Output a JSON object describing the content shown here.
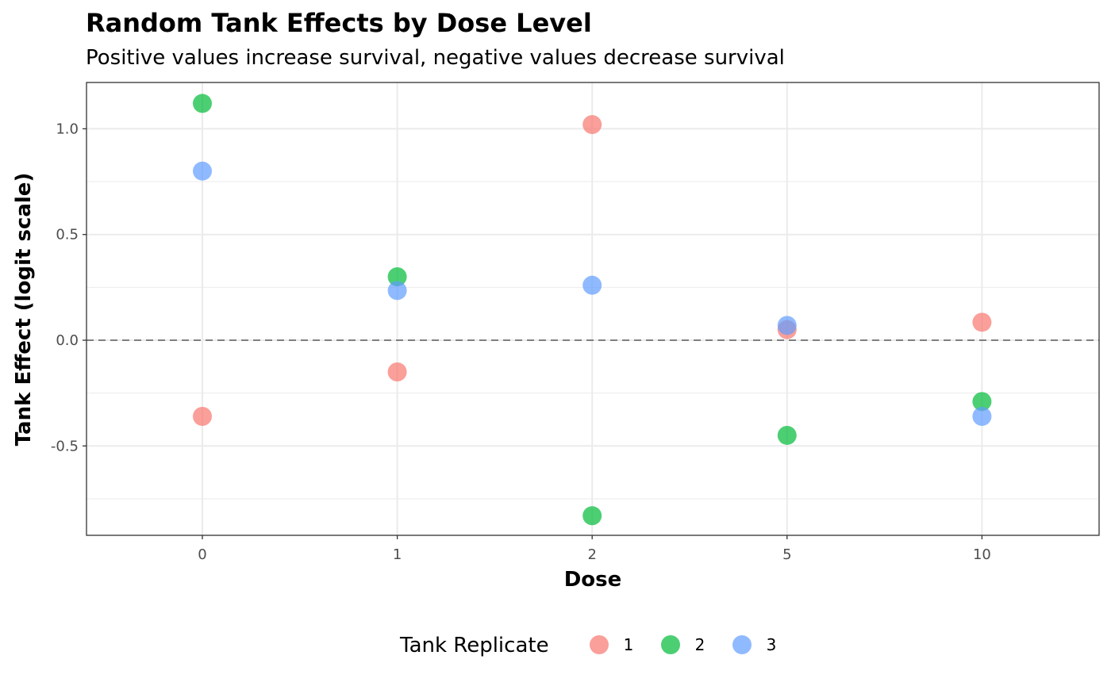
{
  "chart_data": {
    "type": "scatter",
    "title": "Random Tank Effects by Dose Level",
    "subtitle": "Positive values increase survival, negative values decrease survival",
    "xlabel": "Dose",
    "ylabel": "Tank Effect (logit scale)",
    "categories": [
      "0",
      "1",
      "2",
      "5",
      "10"
    ],
    "x_axis_kind": "categorical",
    "ylim": [
      -0.92,
      1.2
    ],
    "yticks": [
      -0.5,
      0.0,
      0.5,
      1.0
    ],
    "ytick_labels": [
      "-0.5",
      "0.0",
      "0.5",
      "1.0"
    ],
    "grid": true,
    "reference_line": {
      "y": 0,
      "style": "dashed",
      "color": "#7f7f7f"
    },
    "legend": {
      "title": "Tank Replicate",
      "position": "bottom"
    },
    "series": [
      {
        "name": "1",
        "color": "#F8766D",
        "values": [
          -0.36,
          -0.15,
          1.02,
          0.05,
          0.085
        ]
      },
      {
        "name": "2",
        "color": "#00BA38",
        "values": [
          1.12,
          0.3,
          -0.83,
          -0.45,
          -0.29
        ]
      },
      {
        "name": "3",
        "color": "#619CFF",
        "values": [
          0.8,
          0.235,
          0.26,
          0.07,
          -0.36
        ]
      }
    ]
  }
}
